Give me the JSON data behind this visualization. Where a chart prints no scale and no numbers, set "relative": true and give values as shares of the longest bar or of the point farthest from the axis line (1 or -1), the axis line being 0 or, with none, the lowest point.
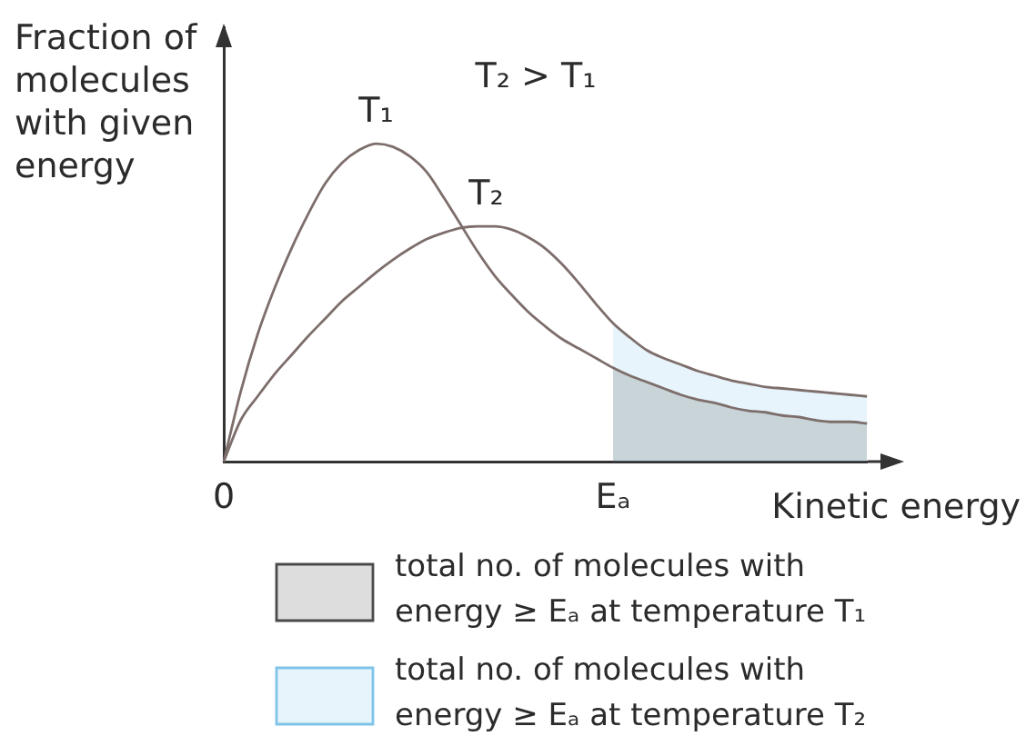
{
  "chart_data": {
    "type": "line",
    "relative": true,
    "ylabel": "Fraction of molecules with given energy",
    "xlabel": "Kinetic energy",
    "annotations": [
      "T₂ > T₁"
    ],
    "categories": [
      "0",
      null,
      null,
      null,
      null,
      null,
      null,
      null,
      null,
      null,
      null,
      null,
      null,
      null,
      null,
      null,
      null,
      null,
      null,
      null,
      null,
      null,
      null,
      "Eₐ",
      null,
      null,
      null,
      null,
      null,
      null,
      null,
      null,
      null,
      null,
      null,
      null,
      null,
      null,
      null
    ],
    "series": [
      {
        "name": "T₁",
        "color": "#7d6e6b",
        "values": [
          0,
          0.22,
          0.4,
          0.545,
          0.67,
          0.78,
          0.875,
          0.94,
          0.98,
          1,
          0.99,
          0.96,
          0.91,
          0.83,
          0.745,
          0.66,
          0.585,
          0.525,
          0.47,
          0.425,
          0.385,
          0.355,
          0.325,
          0.295,
          0.27,
          0.25,
          0.23,
          0.21,
          0.195,
          0.185,
          0.17,
          0.16,
          0.155,
          0.145,
          0.14,
          0.13,
          0.125,
          0.125,
          0.12
        ]
      },
      {
        "name": "T₂",
        "color": "#7d6e6b",
        "values": [
          0,
          0.13,
          0.205,
          0.275,
          0.335,
          0.395,
          0.45,
          0.505,
          0.55,
          0.595,
          0.635,
          0.67,
          0.7,
          0.72,
          0.735,
          0.74,
          0.74,
          0.73,
          0.705,
          0.67,
          0.62,
          0.56,
          0.495,
          0.435,
          0.39,
          0.35,
          0.325,
          0.305,
          0.285,
          0.27,
          0.255,
          0.245,
          0.235,
          0.23,
          0.225,
          0.22,
          0.215,
          0.21,
          0.205
        ]
      },
      {
        "type": "area",
        "name": "total no. of molecules with energy ≥ Eₐ at temperature T₁",
        "color": "#4a4a4a",
        "values": [
          null,
          null,
          null,
          null,
          null,
          null,
          null,
          null,
          null,
          null,
          null,
          null,
          null,
          null,
          null,
          null,
          null,
          null,
          null,
          null,
          null,
          null,
          null,
          0.295,
          0.27,
          0.25,
          0.23,
          0.21,
          0.195,
          0.185,
          0.17,
          0.16,
          0.155,
          0.145,
          0.14,
          0.13,
          0.125,
          0.125,
          0.12
        ]
      },
      {
        "type": "area",
        "name": "total no. of molecules with energy ≥ Eₐ at temperature T₂",
        "color": "#7fc4e8",
        "values": [
          null,
          null,
          null,
          null,
          null,
          null,
          null,
          null,
          null,
          null,
          null,
          null,
          null,
          null,
          null,
          null,
          null,
          null,
          null,
          null,
          null,
          null,
          null,
          0.435,
          0.39,
          0.35,
          0.325,
          0.305,
          0.285,
          0.27,
          0.255,
          0.245,
          0.235,
          0.23,
          0.225,
          0.22,
          0.215,
          0.21,
          0.205
        ]
      }
    ],
    "legend": "bottom"
  }
}
